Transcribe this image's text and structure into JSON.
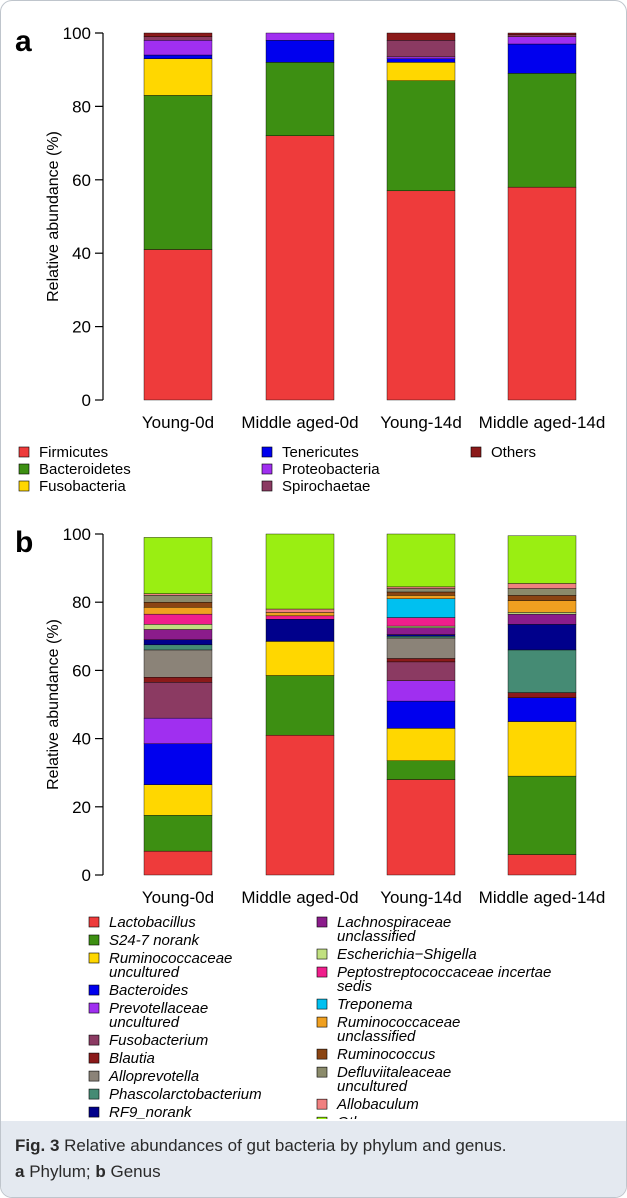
{
  "chart_data": [
    {
      "type": "bar",
      "stacked": true,
      "panel_label": "a",
      "ylabel": "Relative abundance (%)",
      "ylim": [
        0,
        100
      ],
      "yticks": [
        0,
        20,
        40,
        60,
        80,
        100
      ],
      "categories": [
        "Young-0d",
        "Middle aged-0d",
        "Young-14d",
        "Middle aged-14d"
      ],
      "series": [
        {
          "name": "Firmicutes",
          "color": "#ee3b3b",
          "values": [
            41,
            72,
            57,
            58
          ]
        },
        {
          "name": "Bacteroidetes",
          "color": "#3d8f12",
          "values": [
            42,
            20,
            30,
            31
          ]
        },
        {
          "name": "Fusobacteria",
          "color": "#ffd700",
          "values": [
            10,
            0,
            5,
            0
          ]
        },
        {
          "name": "Tenericutes",
          "color": "#0000ee",
          "values": [
            1,
            6,
            1,
            8
          ]
        },
        {
          "name": "Proteobacteria",
          "color": "#a02ff0",
          "values": [
            4,
            2,
            0.5,
            2
          ]
        },
        {
          "name": "Spirochaetae",
          "color": "#8b3a62",
          "values": [
            1,
            0,
            4.5,
            0.5
          ]
        },
        {
          "name": "Others",
          "color": "#8b1a1a",
          "values": [
            1,
            0,
            2,
            0.5
          ]
        }
      ],
      "legend_columns": [
        [
          "Firmicutes",
          "Bacteroidetes",
          "Fusobacteria"
        ],
        [
          "Tenericutes",
          "Proteobacteria",
          "Spirochaetae"
        ],
        [
          "Others"
        ]
      ],
      "legend_position": "bottom",
      "grid": false
    },
    {
      "type": "bar",
      "stacked": true,
      "panel_label": "b",
      "ylabel": "Relative abundance (%)",
      "ylim": [
        0,
        100
      ],
      "yticks": [
        0,
        20,
        40,
        60,
        80,
        100
      ],
      "categories": [
        "Young-0d",
        "Middle aged-0d",
        "Young-14d",
        "Middle aged-14d"
      ],
      "series": [
        {
          "name": "Lactobacillus",
          "color": "#ee3b3b",
          "values": [
            7,
            41,
            28,
            6
          ]
        },
        {
          "name": "S24-7 norank",
          "color": "#3d8f12",
          "values": [
            10.5,
            17.5,
            5.5,
            23
          ]
        },
        {
          "name": "Ruminococcaceae uncultured",
          "color": "#ffd700",
          "values": [
            9,
            10,
            9.5,
            16
          ]
        },
        {
          "name": "Bacteroides",
          "color": "#0000ee",
          "values": [
            12,
            0,
            8,
            7
          ]
        },
        {
          "name": "Prevotellaceae uncultured",
          "color": "#a02ff0",
          "values": [
            7.5,
            0,
            6,
            0
          ]
        },
        {
          "name": "Fusobacterium",
          "color": "#8b3a62",
          "values": [
            10.5,
            0,
            5.5,
            0
          ]
        },
        {
          "name": "Blautia",
          "color": "#8b1a1a",
          "values": [
            1.5,
            0,
            1,
            1.5
          ]
        },
        {
          "name": "Alloprevotella",
          "color": "#8b8378",
          "values": [
            8,
            0,
            6,
            0
          ]
        },
        {
          "name": "Phascolarctobacterium",
          "color": "#458b74",
          "values": [
            1.5,
            0,
            0.5,
            12.5
          ]
        },
        {
          "name": "RF9_norank",
          "color": "#00008b",
          "values": [
            1.5,
            6.5,
            0.5,
            7.5
          ]
        },
        {
          "name": "Lachnospiraceae unclassified",
          "color": "#8b1c8b",
          "values": [
            3,
            0,
            2,
            3
          ]
        },
        {
          "name": "Escherichia−Shigella",
          "color": "#c1e080",
          "values": [
            1.5,
            0,
            0.5,
            0.5
          ]
        },
        {
          "name": "Peptostreptococcaceae incertae sedis",
          "color": "#f01e8c",
          "values": [
            3,
            1,
            2.5,
            0
          ]
        },
        {
          "name": "Treponema",
          "color": "#00c0f0",
          "values": [
            0,
            0,
            5.5,
            0
          ]
        },
        {
          "name": "Ruminococcaceae unclassified",
          "color": "#f0a020",
          "values": [
            2,
            1,
            1,
            3.5
          ]
        },
        {
          "name": "Ruminococcus",
          "color": "#8b4513",
          "values": [
            1.5,
            0,
            1,
            1.5
          ]
        },
        {
          "name": "Defluviitaleaceae uncultured",
          "color": "#8b8b6b",
          "values": [
            2,
            0,
            1,
            2
          ]
        },
        {
          "name": "Allobaculum",
          "color": "#f08080",
          "values": [
            0.5,
            1,
            0.5,
            1.5
          ]
        },
        {
          "name": "Others",
          "color": "#9aee12",
          "values": [
            16.5,
            22,
            15.5,
            14
          ]
        }
      ],
      "legend_columns": [
        [
          "Lactobacillus",
          "S24-7 norank",
          "Ruminococcaceae uncultured",
          "Bacteroides",
          "Prevotellaceae uncultured",
          "Fusobacterium",
          "Blautia",
          "Alloprevotella",
          "Phascolarctobacterium",
          "RF9_norank"
        ],
        [
          "Lachnospiraceae unclassified",
          "Escherichia−Shigella",
          "Peptostreptococcaceae incertae sedis",
          "Treponema",
          "Ruminococcaceae unclassified",
          "Ruminococcus",
          "Defluviitaleaceae uncultured",
          "Allobaculum",
          "Others"
        ]
      ],
      "legend_position": "bottom",
      "grid": false
    }
  ],
  "caption": {
    "fig_label": "Fig. 3",
    "fig_text": "Relative abundances of gut bacteria by phylum and genus.",
    "part_a_label": "a",
    "part_a_text": "Phylum;",
    "part_b_label": "b",
    "part_b_text": "Genus"
  }
}
